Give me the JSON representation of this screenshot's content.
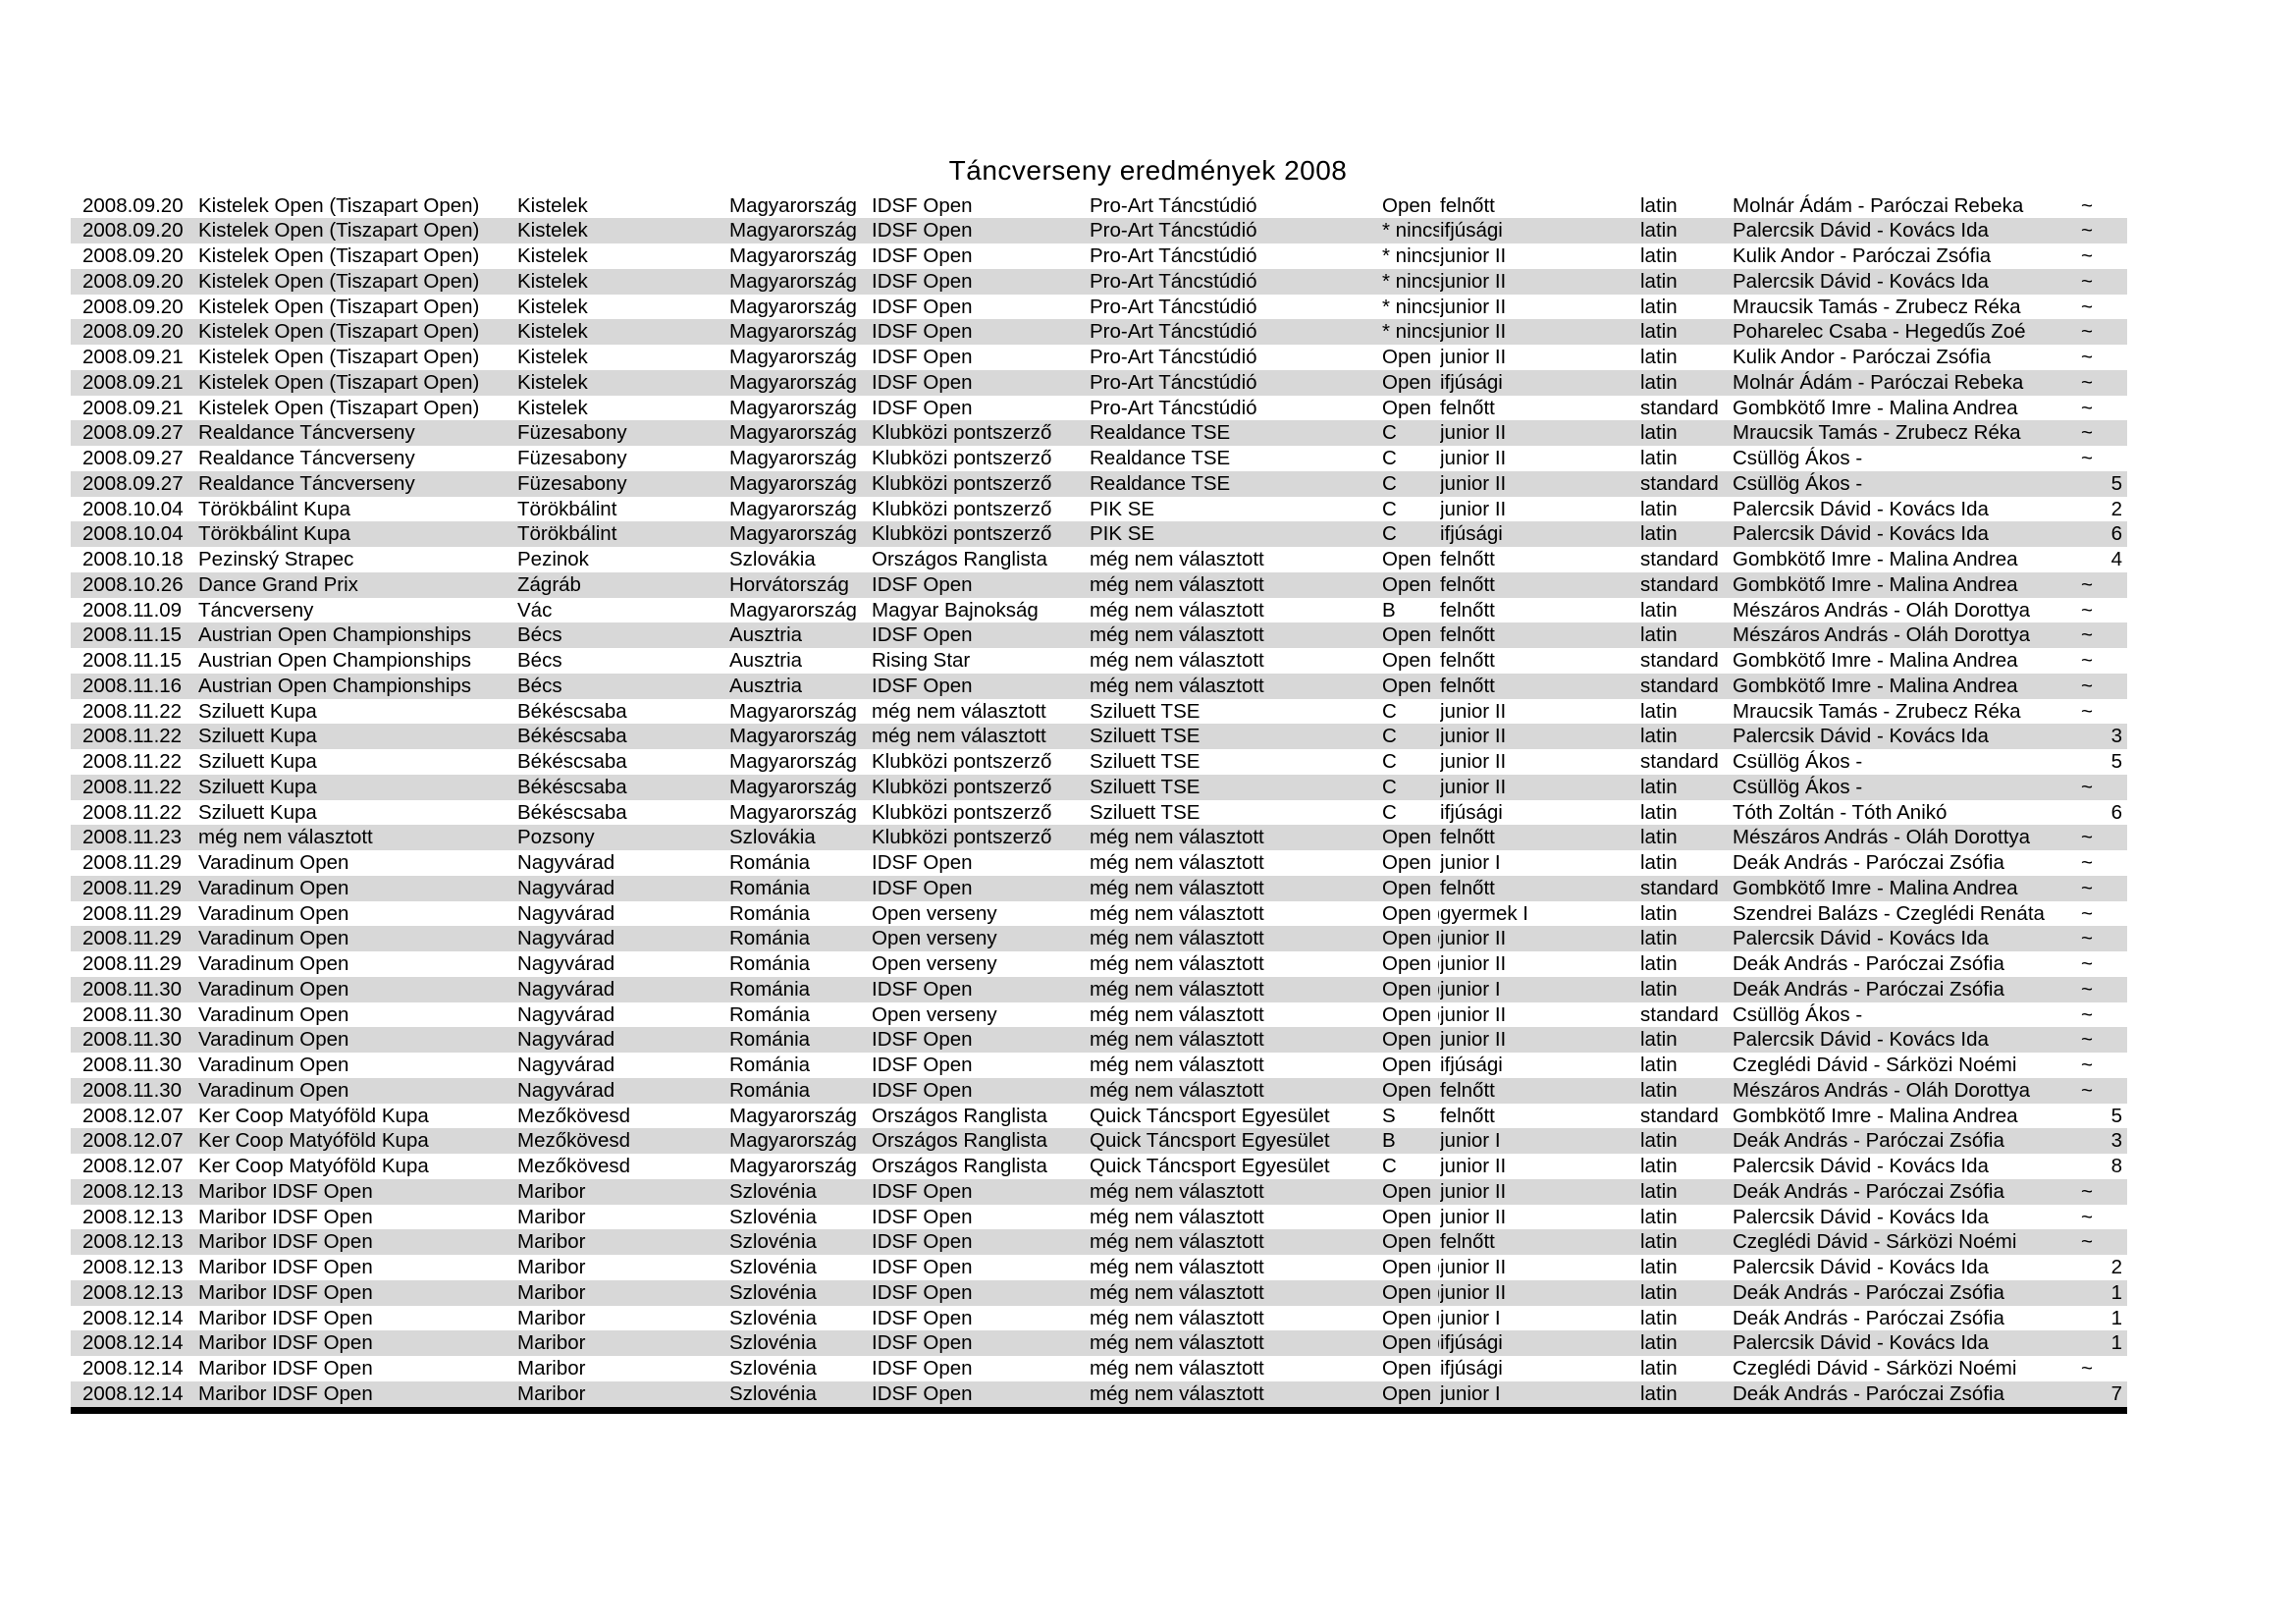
{
  "title": "Táncverseny eredmények 2008",
  "colors": {
    "stripe": "#d8d8d8",
    "text": "#000000",
    "bottom_rule": "#000000",
    "background": "#ffffff"
  },
  "table": {
    "columns": [
      "date",
      "event",
      "city",
      "country",
      "type",
      "club",
      "class",
      "age_group",
      "style",
      "couple",
      "result"
    ],
    "rows": [
      [
        "2008.09.20",
        "Kistelek Open (Tiszapart Open)",
        "Kistelek",
        "Magyarország",
        "IDSF Open",
        "Pro-Art Táncstúdió",
        "Open",
        "felnőtt",
        "latin",
        "Molnár Ádám - Paróczai Rebeka",
        "~"
      ],
      [
        "2008.09.20",
        "Kistelek Open (Tiszapart Open)",
        "Kistelek",
        "Magyarország",
        "IDSF Open",
        "Pro-Art Táncstúdió",
        "* nincs",
        "ifjúsági",
        "latin",
        "Palercsik Dávid - Kovács Ida",
        "~"
      ],
      [
        "2008.09.20",
        "Kistelek Open (Tiszapart Open)",
        "Kistelek",
        "Magyarország",
        "IDSF Open",
        "Pro-Art Táncstúdió",
        "* nincs",
        "junior II",
        "latin",
        "Kulik Andor - Paróczai Zsófia",
        "~"
      ],
      [
        "2008.09.20",
        "Kistelek Open (Tiszapart Open)",
        "Kistelek",
        "Magyarország",
        "IDSF Open",
        "Pro-Art Táncstúdió",
        "* nincs",
        "junior II",
        "latin",
        "Palercsik Dávid - Kovács Ida",
        "~"
      ],
      [
        "2008.09.20",
        "Kistelek Open (Tiszapart Open)",
        "Kistelek",
        "Magyarország",
        "IDSF Open",
        "Pro-Art Táncstúdió",
        "* nincs",
        "junior II",
        "latin",
        "Mraucsik Tamás - Zrubecz Réka",
        "~"
      ],
      [
        "2008.09.20",
        "Kistelek Open (Tiszapart Open)",
        "Kistelek",
        "Magyarország",
        "IDSF Open",
        "Pro-Art Táncstúdió",
        "* nincs",
        "junior II",
        "latin",
        "Poharelec Csaba - Hegedűs Zoé",
        "~"
      ],
      [
        "2008.09.21",
        "Kistelek Open (Tiszapart Open)",
        "Kistelek",
        "Magyarország",
        "IDSF Open",
        "Pro-Art Táncstúdió",
        "Open",
        "junior II",
        "latin",
        "Kulik Andor - Paróczai Zsófia",
        "~"
      ],
      [
        "2008.09.21",
        "Kistelek Open (Tiszapart Open)",
        "Kistelek",
        "Magyarország",
        "IDSF Open",
        "Pro-Art Táncstúdió",
        "Open",
        "ifjúsági",
        "latin",
        "Molnár Ádám - Paróczai Rebeka",
        "~"
      ],
      [
        "2008.09.21",
        "Kistelek Open (Tiszapart Open)",
        "Kistelek",
        "Magyarország",
        "IDSF Open",
        "Pro-Art Táncstúdió",
        "Open",
        "felnőtt",
        "standard",
        "Gombkötő Imre - Malina Andrea",
        "~"
      ],
      [
        "2008.09.27",
        "Realdance Táncverseny",
        "Füzesabony",
        "Magyarország",
        "Klubközi pontszerző",
        "Realdance TSE",
        "C",
        "junior II",
        "latin",
        "Mraucsik Tamás - Zrubecz Réka",
        "~"
      ],
      [
        "2008.09.27",
        "Realdance Táncverseny",
        "Füzesabony",
        "Magyarország",
        "Klubközi pontszerző",
        "Realdance TSE",
        "C",
        "junior II",
        "latin",
        "Csüllög Ákos -",
        "~"
      ],
      [
        "2008.09.27",
        "Realdance Táncverseny",
        "Füzesabony",
        "Magyarország",
        "Klubközi pontszerző",
        "Realdance TSE",
        "C",
        "junior II",
        "standard",
        "Csüllög Ákos -",
        "5"
      ],
      [
        "2008.10.04",
        "Törökbálint Kupa",
        "Törökbálint",
        "Magyarország",
        "Klubközi pontszerző",
        "PIK SE",
        "C",
        "junior II",
        "latin",
        "Palercsik Dávid - Kovács Ida",
        "2"
      ],
      [
        "2008.10.04",
        "Törökbálint Kupa",
        "Törökbálint",
        "Magyarország",
        "Klubközi pontszerző",
        "PIK SE",
        "C",
        "ifjúsági",
        "latin",
        "Palercsik Dávid - Kovács Ida",
        "6"
      ],
      [
        "2008.10.18",
        "Pezinský Strapec",
        "Pezinok",
        "Szlovákia",
        "Országos Ranglista",
        "még nem választott",
        "Open",
        "felnőtt",
        "standard",
        "Gombkötő Imre - Malina Andrea",
        "4"
      ],
      [
        "2008.10.26",
        "Dance Grand Prix",
        "Zágráb",
        "Horvátország",
        "IDSF Open",
        "még nem választott",
        "Open",
        "felnőtt",
        "standard",
        "Gombkötő Imre - Malina Andrea",
        "~"
      ],
      [
        "2008.11.09",
        "Táncverseny",
        "Vác",
        "Magyarország",
        "Magyar Bajnokság",
        "még nem választott",
        "B",
        "felnőtt",
        "latin",
        "Mészáros András - Oláh Dorottya",
        "~"
      ],
      [
        "2008.11.15",
        "Austrian Open Championships",
        "Bécs",
        "Ausztria",
        "IDSF Open",
        "még nem választott",
        "Open",
        "felnőtt",
        "latin",
        "Mészáros András - Oláh Dorottya",
        "~"
      ],
      [
        "2008.11.15",
        "Austrian Open Championships",
        "Bécs",
        "Ausztria",
        "Rising Star",
        "még nem választott",
        "Open",
        "felnőtt",
        "standard",
        "Gombkötő Imre - Malina Andrea",
        "~"
      ],
      [
        "2008.11.16",
        "Austrian Open Championships",
        "Bécs",
        "Ausztria",
        "IDSF Open",
        "még nem választott",
        "Open",
        "felnőtt",
        "standard",
        "Gombkötő Imre - Malina Andrea",
        "~"
      ],
      [
        "2008.11.22",
        "Sziluett Kupa",
        "Békéscsaba",
        "Magyarország",
        "még nem választott",
        "Sziluett TSE",
        "C",
        "junior II",
        "latin",
        "Mraucsik Tamás - Zrubecz Réka",
        "~"
      ],
      [
        "2008.11.22",
        "Sziluett Kupa",
        "Békéscsaba",
        "Magyarország",
        "még nem választott",
        "Sziluett TSE",
        "C",
        "junior II",
        "latin",
        "Palercsik Dávid - Kovács Ida",
        "3"
      ],
      [
        "2008.11.22",
        "Sziluett Kupa",
        "Békéscsaba",
        "Magyarország",
        "Klubközi pontszerző",
        "Sziluett TSE",
        "C",
        "junior II",
        "standard",
        "Csüllög Ákos -",
        "5"
      ],
      [
        "2008.11.22",
        "Sziluett Kupa",
        "Békéscsaba",
        "Magyarország",
        "Klubközi pontszerző",
        "Sziluett TSE",
        "C",
        "junior II",
        "latin",
        "Csüllög Ákos -",
        "~"
      ],
      [
        "2008.11.22",
        "Sziluett Kupa",
        "Békéscsaba",
        "Magyarország",
        "Klubközi pontszerző",
        "Sziluett TSE",
        "C",
        "ifjúsági",
        "latin",
        "Tóth Zoltán - Tóth Anikó",
        "6"
      ],
      [
        "2008.11.23",
        "még nem választott",
        "Pozsony",
        "Szlovákia",
        "Klubközi pontszerző",
        "még nem választott",
        "Open",
        "felnőtt",
        "latin",
        "Mészáros András - Oláh Dorottya",
        "~"
      ],
      [
        "2008.11.29",
        "Varadinum Open",
        "Nagyvárad",
        "Románia",
        "IDSF Open",
        "még nem választott",
        "Open",
        "junior I",
        "latin",
        "Deák András - Paróczai Zsófia",
        "~"
      ],
      [
        "2008.11.29",
        "Varadinum Open",
        "Nagyvárad",
        "Románia",
        "IDSF Open",
        "még nem választott",
        "Open",
        "felnőtt",
        "standard",
        "Gombkötő Imre - Malina Andrea",
        "~"
      ],
      [
        "2008.11.29",
        "Varadinum Open",
        "Nagyvárad",
        "Románia",
        "Open verseny",
        "még nem választott",
        "Open (",
        "gyermek I",
        "latin",
        "Szendrei Balázs - Czeglédi Renáta",
        "~"
      ],
      [
        "2008.11.29",
        "Varadinum Open",
        "Nagyvárad",
        "Románia",
        "Open verseny",
        "még nem választott",
        "Open (",
        "junior II",
        "latin",
        "Palercsik Dávid - Kovács Ida",
        "~"
      ],
      [
        "2008.11.29",
        "Varadinum Open",
        "Nagyvárad",
        "Románia",
        "Open verseny",
        "még nem választott",
        "Open (",
        "junior II",
        "latin",
        "Deák András - Paróczai Zsófia",
        "~"
      ],
      [
        "2008.11.30",
        "Varadinum Open",
        "Nagyvárad",
        "Románia",
        "IDSF Open",
        "még nem választott",
        "Open (",
        "junior I",
        "latin",
        "Deák András - Paróczai Zsófia",
        "~"
      ],
      [
        "2008.11.30",
        "Varadinum Open",
        "Nagyvárad",
        "Románia",
        "Open verseny",
        "még nem választott",
        "Open (",
        "junior II",
        "standard",
        "Csüllög Ákos -",
        "~"
      ],
      [
        "2008.11.30",
        "Varadinum Open",
        "Nagyvárad",
        "Románia",
        "IDSF Open",
        "még nem választott",
        "Open",
        "junior II",
        "latin",
        "Palercsik Dávid - Kovács Ida",
        "~"
      ],
      [
        "2008.11.30",
        "Varadinum Open",
        "Nagyvárad",
        "Románia",
        "IDSF Open",
        "még nem választott",
        "Open",
        "ifjúsági",
        "latin",
        "Czeglédi Dávid - Sárközi Noémi",
        "~"
      ],
      [
        "2008.11.30",
        "Varadinum Open",
        "Nagyvárad",
        "Románia",
        "IDSF Open",
        "még nem választott",
        "Open",
        "felnőtt",
        "latin",
        "Mészáros András - Oláh Dorottya",
        "~"
      ],
      [
        "2008.12.07",
        "Ker Coop Matyóföld Kupa",
        "Mezőkövesd",
        "Magyarország",
        "Országos Ranglista",
        "Quick Táncsport Egyesület",
        "S",
        "felnőtt",
        "standard",
        "Gombkötő Imre - Malina Andrea",
        "5"
      ],
      [
        "2008.12.07",
        "Ker Coop Matyóföld Kupa",
        "Mezőkövesd",
        "Magyarország",
        "Országos Ranglista",
        "Quick Táncsport Egyesület",
        "B",
        "junior I",
        "latin",
        "Deák András - Paróczai Zsófia",
        "3"
      ],
      [
        "2008.12.07",
        "Ker Coop Matyóföld Kupa",
        "Mezőkövesd",
        "Magyarország",
        "Országos Ranglista",
        "Quick Táncsport Egyesület",
        "C",
        "junior II",
        "latin",
        "Palercsik Dávid - Kovács Ida",
        "8"
      ],
      [
        "2008.12.13",
        "Maribor IDSF Open",
        "Maribor",
        "Szlovénia",
        "IDSF Open",
        "még nem választott",
        "Open",
        "junior II",
        "latin",
        "Deák András - Paróczai Zsófia",
        "~"
      ],
      [
        "2008.12.13",
        "Maribor IDSF Open",
        "Maribor",
        "Szlovénia",
        "IDSF Open",
        "még nem választott",
        "Open",
        "junior II",
        "latin",
        "Palercsik Dávid - Kovács Ida",
        "~"
      ],
      [
        "2008.12.13",
        "Maribor IDSF Open",
        "Maribor",
        "Szlovénia",
        "IDSF Open",
        "még nem választott",
        "Open",
        "felnőtt",
        "latin",
        "Czeglédi Dávid - Sárközi Noémi",
        "~"
      ],
      [
        "2008.12.13",
        "Maribor IDSF Open",
        "Maribor",
        "Szlovénia",
        "IDSF Open",
        "még nem választott",
        "Open (",
        "junior II",
        "latin",
        "Palercsik Dávid - Kovács Ida",
        "2"
      ],
      [
        "2008.12.13",
        "Maribor IDSF Open",
        "Maribor",
        "Szlovénia",
        "IDSF Open",
        "még nem választott",
        "Open (",
        "junior II",
        "latin",
        "Deák András - Paróczai Zsófia",
        "1"
      ],
      [
        "2008.12.14",
        "Maribor IDSF Open",
        "Maribor",
        "Szlovénia",
        "IDSF Open",
        "még nem választott",
        "Open (",
        "junior I",
        "latin",
        "Deák András - Paróczai Zsófia",
        "1"
      ],
      [
        "2008.12.14",
        "Maribor IDSF Open",
        "Maribor",
        "Szlovénia",
        "IDSF Open",
        "még nem választott",
        "Open (",
        "ifjúsági",
        "latin",
        "Palercsik Dávid - Kovács Ida",
        "1"
      ],
      [
        "2008.12.14",
        "Maribor IDSF Open",
        "Maribor",
        "Szlovénia",
        "IDSF Open",
        "még nem választott",
        "Open",
        "ifjúsági",
        "latin",
        "Czeglédi Dávid - Sárközi Noémi",
        "~"
      ],
      [
        "2008.12.14",
        "Maribor IDSF Open",
        "Maribor",
        "Szlovénia",
        "IDSF Open",
        "még nem választott",
        "Open",
        "junior I",
        "latin",
        "Deák András - Paróczai Zsófia",
        "7"
      ]
    ]
  }
}
